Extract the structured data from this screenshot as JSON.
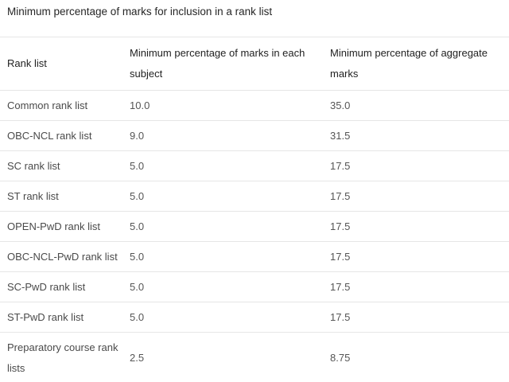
{
  "caption": "Minimum percentage of marks for inclusion in a rank list",
  "table": {
    "headers": [
      "Rank list",
      "Minimum percentage of marks in each subject",
      "Minimum percentage of aggregate marks"
    ],
    "rows": [
      {
        "rank_list": "Common rank list",
        "each_subject": "10.0",
        "aggregate": "35.0"
      },
      {
        "rank_list": "OBC-NCL rank list",
        "each_subject": "9.0",
        "aggregate": "31.5"
      },
      {
        "rank_list": "SC rank list",
        "each_subject": "5.0",
        "aggregate": "17.5"
      },
      {
        "rank_list": "ST rank list",
        "each_subject": "5.0",
        "aggregate": "17.5"
      },
      {
        "rank_list": "OPEN-PwD rank list",
        "each_subject": "5.0",
        "aggregate": "17.5"
      },
      {
        "rank_list": "OBC-NCL-PwD rank list",
        "each_subject": "5.0",
        "aggregate": "17.5"
      },
      {
        "rank_list": "SC-PwD rank list",
        "each_subject": "5.0",
        "aggregate": "17.5"
      },
      {
        "rank_list": "ST-PwD rank list",
        "each_subject": "5.0",
        "aggregate": "17.5"
      },
      {
        "rank_list": "Preparatory course rank lists",
        "each_subject": "2.5",
        "aggregate": "8.75"
      }
    ]
  }
}
